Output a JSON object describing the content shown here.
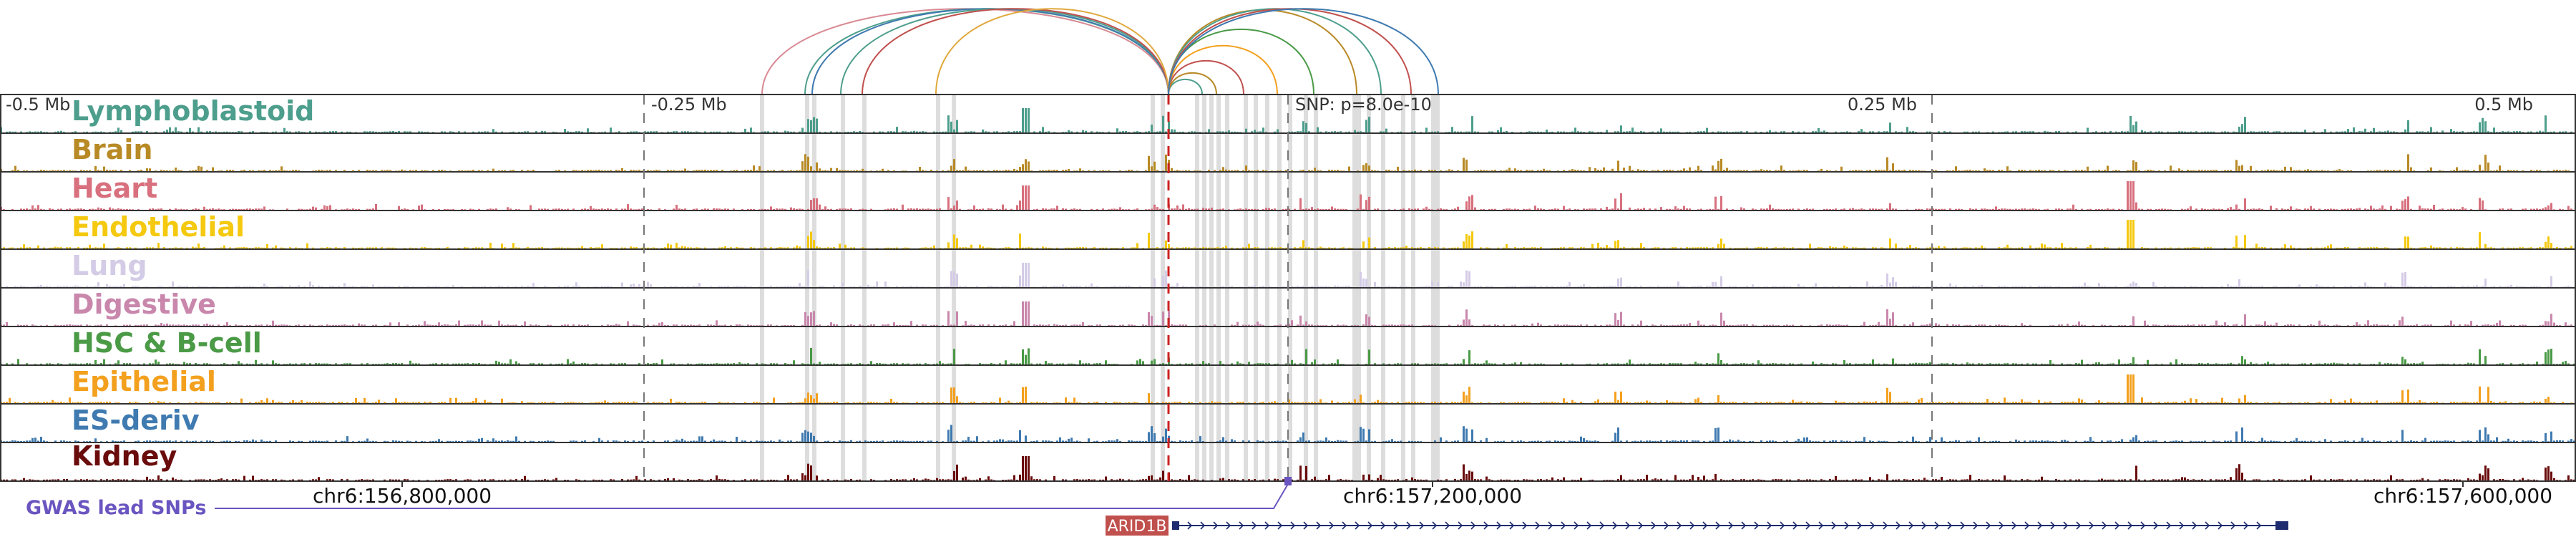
{
  "offset_scale": {
    "labels": [
      "-0.5 Mb",
      "-0.25 Mb",
      "0.25 Mb",
      "0.5 Mb"
    ]
  },
  "snp_label": "SNP: p=8.0e-10",
  "tracks": [
    {
      "name": "Lymphoblastoid",
      "color": "#4d9e8c"
    },
    {
      "name": "Brain",
      "color": "#b88a26"
    },
    {
      "name": "Heart",
      "color": "#d8707e"
    },
    {
      "name": "Endothelial",
      "color": "#f4c90f"
    },
    {
      "name": "Lung",
      "color": "#d4cce6"
    },
    {
      "name": "Digestive",
      "color": "#c987ac"
    },
    {
      "name": "HSC & B-cell",
      "color": "#4a9a46"
    },
    {
      "name": "Epithelial",
      "color": "#f3a01e"
    },
    {
      "name": "ES-deriv",
      "color": "#3f7ab0"
    },
    {
      "name": "Kidney",
      "color": "#6a0c0c"
    }
  ],
  "genomic_axis": {
    "labels": [
      "chr6:156,800,000",
      "chr6:157,200,000",
      "chr6:157,600,000"
    ]
  },
  "gwas": {
    "label": "GWAS lead SNPs",
    "color": "#6a55c0"
  },
  "gene": {
    "name": "ARID1B",
    "label_bg": "#c0504d",
    "color": "#1e2b6e"
  },
  "colors": {
    "snp_line": "#cc2222",
    "highlight": "#dddddd",
    "axis": "#333333",
    "dashes": "#777777"
  }
}
